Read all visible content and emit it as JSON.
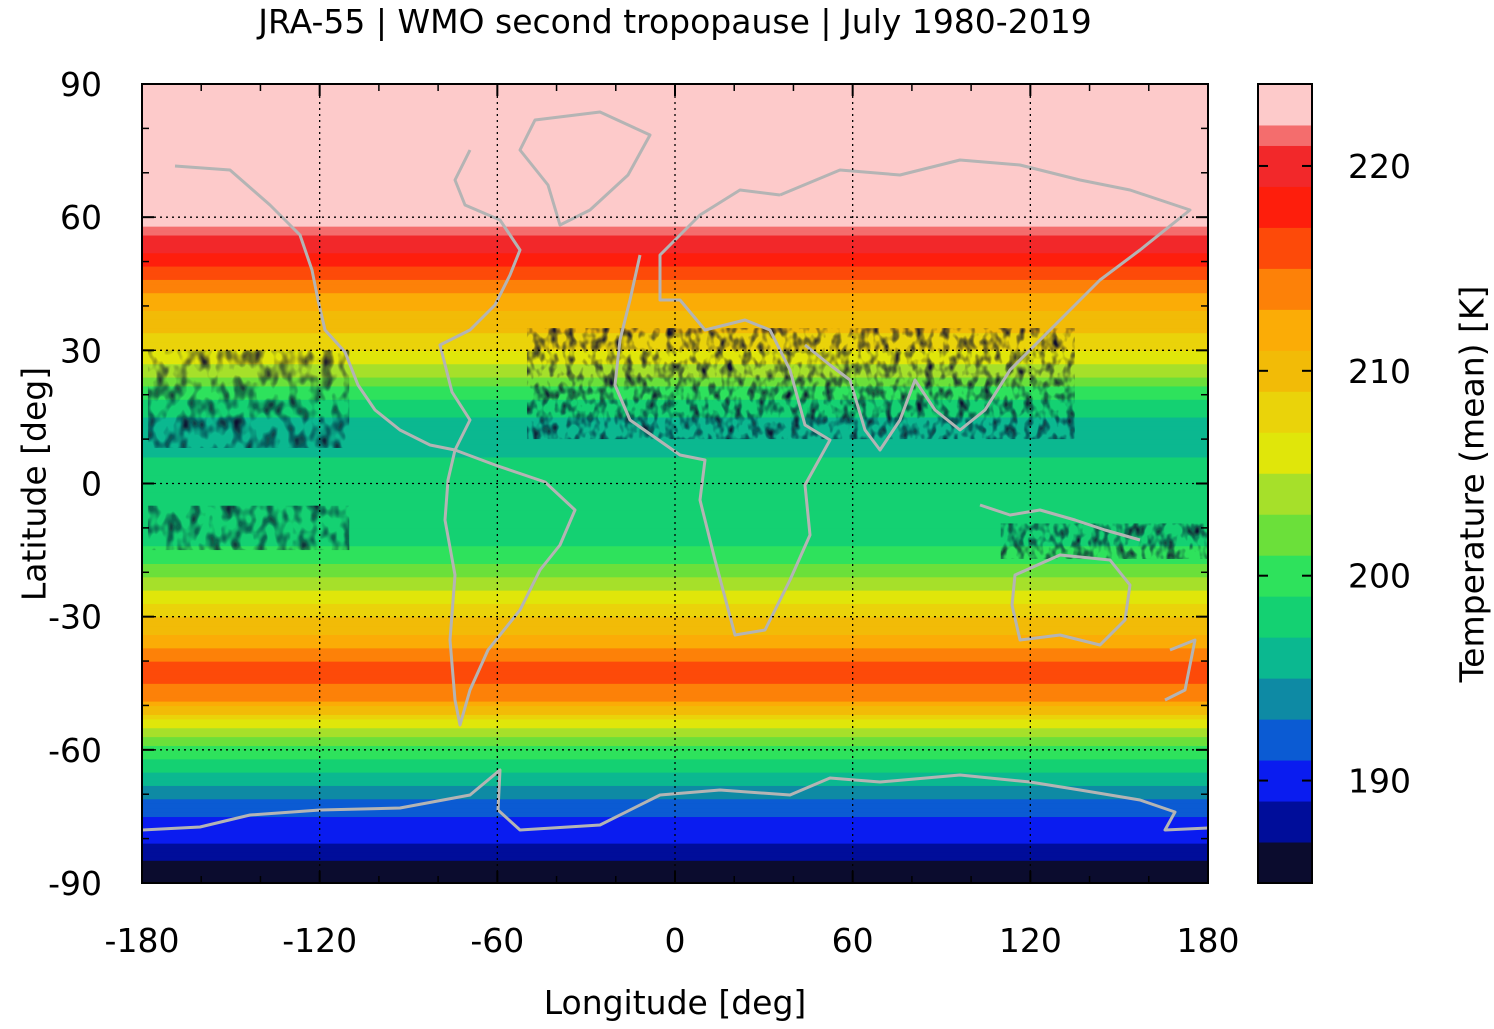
{
  "chart_data": {
    "type": "heatmap",
    "title": "JRA-55 | WMO second tropopause | July 1980-2019",
    "xlabel": "Longitude [deg]",
    "ylabel": "Latitude [deg]",
    "xlim": [
      -180,
      180
    ],
    "ylim": [
      -90,
      90
    ],
    "x_ticks": [
      "-180",
      "-120",
      "-60",
      "0",
      "60",
      "120",
      "180"
    ],
    "y_ticks": [
      "90",
      "60",
      "30",
      "0",
      "-30",
      "-60",
      "-90"
    ],
    "grid": true,
    "colorbar": {
      "label": "Temperature (mean) [K]",
      "range": [
        185,
        224
      ],
      "ticks": [
        "220",
        "210",
        "200",
        "190"
      ],
      "levels": [
        {
          "min": 185,
          "max": 187,
          "color": "#0b0c2e"
        },
        {
          "min": 187,
          "max": 189,
          "color": "#000d9a"
        },
        {
          "min": 189,
          "max": 191,
          "color": "#0a1cf0"
        },
        {
          "min": 191,
          "max": 193,
          "color": "#0b5bd3"
        },
        {
          "min": 193,
          "max": 195,
          "color": "#0e8aa4"
        },
        {
          "min": 195,
          "max": 197,
          "color": "#0bb890"
        },
        {
          "min": 197,
          "max": 199,
          "color": "#14d172"
        },
        {
          "min": 199,
          "max": 201,
          "color": "#2ee25c"
        },
        {
          "min": 201,
          "max": 203,
          "color": "#6be03a"
        },
        {
          "min": 203,
          "max": 205,
          "color": "#a6e02a"
        },
        {
          "min": 205,
          "max": 207,
          "color": "#e0e60a"
        },
        {
          "min": 207,
          "max": 209,
          "color": "#ead30a"
        },
        {
          "min": 209,
          "max": 211,
          "color": "#f2bb07"
        },
        {
          "min": 211,
          "max": 213,
          "color": "#fbac06"
        },
        {
          "min": 213,
          "max": 215,
          "color": "#fd8108"
        },
        {
          "min": 215,
          "max": 217,
          "color": "#fd4a09"
        },
        {
          "min": 217,
          "max": 219,
          "color": "#fe1e0c"
        },
        {
          "min": 219,
          "max": 221,
          "color": "#f2282a"
        },
        {
          "min": 221,
          "max": 222,
          "color": "#f46d6d"
        },
        {
          "min": 222,
          "max": 224,
          "color": "#fdcaca"
        }
      ]
    },
    "zonal_mean_profile": {
      "lat": [
        -90,
        -84,
        -78,
        -72,
        -66,
        -60,
        -54,
        -48,
        -42,
        -36,
        -30,
        -24,
        -18,
        -12,
        -6,
        0,
        6,
        12,
        18,
        24,
        30,
        36,
        42,
        48,
        54,
        58,
        62,
        70,
        80,
        90
      ],
      "value": [
        186,
        188,
        190,
        192,
        196,
        200,
        206,
        214,
        216,
        212,
        209,
        205,
        201,
        198,
        198,
        198,
        197,
        196,
        198,
        203,
        207,
        210,
        212,
        216,
        220,
        222,
        223,
        223,
        223,
        223
      ]
    },
    "cold_regions_below_187K": [
      {
        "lon": [
          -178,
          -110
        ],
        "lat": [
          8,
          30
        ]
      },
      {
        "lon": [
          -50,
          135
        ],
        "lat": [
          10,
          35
        ]
      },
      {
        "lon": [
          -178,
          -110
        ],
        "lat": [
          -15,
          -5
        ]
      },
      {
        "lon": [
          110,
          180
        ],
        "lat": [
          -17,
          -9
        ]
      },
      {
        "lon": [
          -180,
          180
        ],
        "lat": [
          -90,
          -85
        ]
      }
    ],
    "overlay": "coastlines",
    "overlay_color": "#b4b4b4",
    "grid_color": "#000000"
  }
}
